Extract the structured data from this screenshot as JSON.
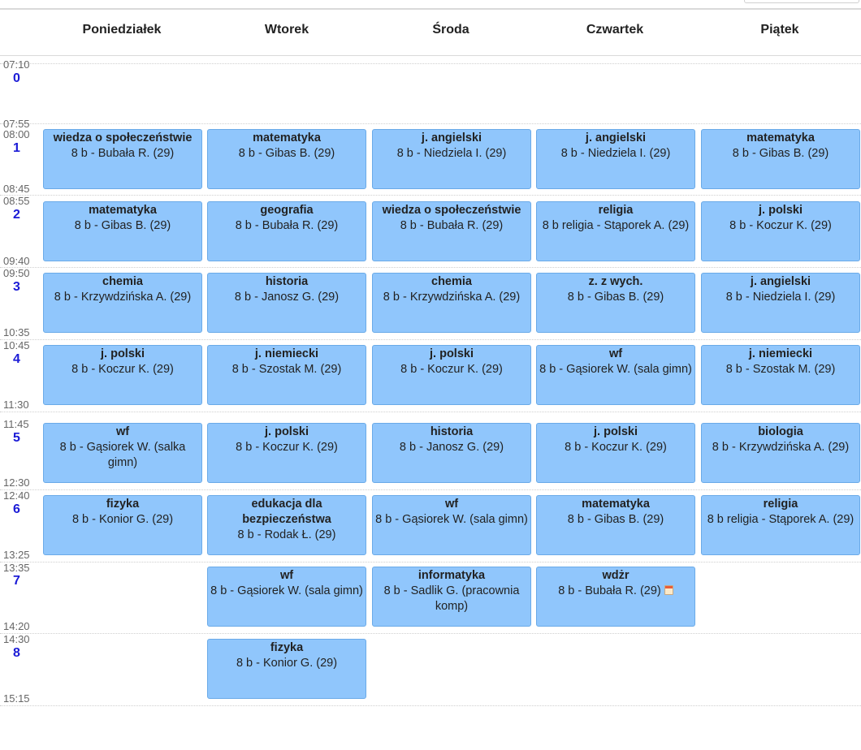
{
  "days": [
    "Poniedziałek",
    "Wtorek",
    "Środa",
    "Czwartek",
    "Piątek"
  ],
  "periods": [
    {
      "num": "0",
      "start": "07:10",
      "end": "07:55"
    },
    {
      "num": "1",
      "start": "08:00",
      "end": "08:45"
    },
    {
      "num": "2",
      "start": "08:55",
      "end": "09:40"
    },
    {
      "num": "3",
      "start": "09:50",
      "end": "10:35"
    },
    {
      "num": "4",
      "start": "10:45",
      "end": "11:30"
    },
    {
      "num": "5",
      "start": "11:45",
      "end": "12:30"
    },
    {
      "num": "6",
      "start": "12:40",
      "end": "13:25"
    },
    {
      "num": "7",
      "start": "13:35",
      "end": "14:20"
    },
    {
      "num": "8",
      "start": "14:30",
      "end": "15:15"
    }
  ],
  "lessons": {
    "p1": [
      {
        "subject": "wiedza o społeczeństwie",
        "detail": "8 b - Bubała R. (29)"
      },
      {
        "subject": "matematyka",
        "detail": "8 b - Gibas B. (29)"
      },
      {
        "subject": "j. angielski",
        "detail": "8 b - Niedziela I. (29)"
      },
      {
        "subject": "j. angielski",
        "detail": "8 b - Niedziela I. (29)"
      },
      {
        "subject": "matematyka",
        "detail": "8 b - Gibas B. (29)"
      }
    ],
    "p2": [
      {
        "subject": "matematyka",
        "detail": "8 b - Gibas B. (29)"
      },
      {
        "subject": "geografia",
        "detail": "8 b - Bubała R. (29)"
      },
      {
        "subject": "wiedza o społeczeństwie",
        "detail": "8 b - Bubała R. (29)"
      },
      {
        "subject": "religia",
        "detail": "8 b religia - Stąporek A. (29)"
      },
      {
        "subject": "j. polski",
        "detail": "8 b - Koczur K. (29)"
      }
    ],
    "p3": [
      {
        "subject": "chemia",
        "detail": "8 b - Krzywdzińska A. (29)"
      },
      {
        "subject": "historia",
        "detail": "8 b - Janosz G. (29)"
      },
      {
        "subject": "chemia",
        "detail": "8 b - Krzywdzińska A. (29)"
      },
      {
        "subject": "z. z wych.",
        "detail": "8 b - Gibas B. (29)"
      },
      {
        "subject": "j. angielski",
        "detail": "8 b - Niedziela I. (29)"
      }
    ],
    "p4": [
      {
        "subject": "j. polski",
        "detail": "8 b - Koczur K. (29)"
      },
      {
        "subject": "j. niemiecki",
        "detail": "8 b - Szostak M. (29)"
      },
      {
        "subject": "j. polski",
        "detail": "8 b - Koczur K. (29)"
      },
      {
        "subject": "wf",
        "detail": "8 b - Gąsiorek W. (sala gimn)"
      },
      {
        "subject": "j. niemiecki",
        "detail": "8 b - Szostak M. (29)"
      }
    ],
    "p5": [
      {
        "subject": "wf",
        "detail": "8 b - Gąsiorek W. (salka gimn)"
      },
      {
        "subject": "j. polski",
        "detail": "8 b - Koczur K. (29)"
      },
      {
        "subject": "historia",
        "detail": "8 b - Janosz G. (29)"
      },
      {
        "subject": "j. polski",
        "detail": "8 b - Koczur K. (29)"
      },
      {
        "subject": "biologia",
        "detail": "8 b - Krzywdzińska A. (29)"
      }
    ],
    "p6": [
      {
        "subject": "fizyka",
        "detail": "8 b - Konior G. (29)"
      },
      {
        "subject": "edukacja dla bezpieczeństwa",
        "detail": "8 b - Rodak Ł. (29)"
      },
      {
        "subject": "wf",
        "detail": "8 b - Gąsiorek W. (sala gimn)"
      },
      {
        "subject": "matematyka",
        "detail": "8 b - Gibas B. (29)"
      },
      {
        "subject": "religia",
        "detail": "8 b religia - Stąporek A. (29)"
      }
    ],
    "p7": [
      {
        "subject": "wf",
        "detail": "8 b - Gąsiorek W. (sala gimn)"
      },
      {
        "subject": "informatyka",
        "detail": "8 b - Sadlik G. (pracownia komp)"
      },
      {
        "subject": "wdżr",
        "detail": "8 b - Bubała R. (29)",
        "icon": "calendar-icon"
      }
    ],
    "p8": [
      {
        "subject": "fizyka",
        "detail": "8 b - Konior G. (29)"
      }
    ]
  }
}
